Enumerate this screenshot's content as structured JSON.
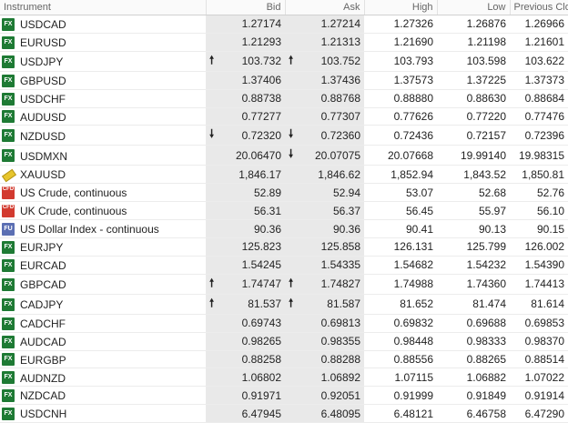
{
  "columns": {
    "instrument": "Instrument",
    "bid": "Bid",
    "ask": "Ask",
    "high": "High",
    "low": "Low",
    "prev_close": "Previous Close"
  },
  "rows": [
    {
      "type": "FX",
      "name": "USDCAD",
      "bid": "1.27174",
      "ask": "1.27214",
      "high": "1.27326",
      "low": "1.26876",
      "prev": "1.26966",
      "bid_arrow": "",
      "ask_arrow": ""
    },
    {
      "type": "FX",
      "name": "EURUSD",
      "bid": "1.21293",
      "ask": "1.21313",
      "high": "1.21690",
      "low": "1.21198",
      "prev": "1.21601",
      "bid_arrow": "",
      "ask_arrow": ""
    },
    {
      "type": "FX",
      "name": "USDJPY",
      "bid": "103.732",
      "ask": "103.752",
      "high": "103.793",
      "low": "103.598",
      "prev": "103.622",
      "bid_arrow": "🠕",
      "ask_arrow": "🠕"
    },
    {
      "type": "FX",
      "name": "GBPUSD",
      "bid": "1.37406",
      "ask": "1.37436",
      "high": "1.37573",
      "low": "1.37225",
      "prev": "1.37373",
      "bid_arrow": "",
      "ask_arrow": ""
    },
    {
      "type": "FX",
      "name": "USDCHF",
      "bid": "0.88738",
      "ask": "0.88768",
      "high": "0.88880",
      "low": "0.88630",
      "prev": "0.88684",
      "bid_arrow": "",
      "ask_arrow": ""
    },
    {
      "type": "FX",
      "name": "AUDUSD",
      "bid": "0.77277",
      "ask": "0.77307",
      "high": "0.77626",
      "low": "0.77220",
      "prev": "0.77476",
      "bid_arrow": "",
      "ask_arrow": ""
    },
    {
      "type": "FX",
      "name": "NZDUSD",
      "bid": "0.72320",
      "ask": "0.72360",
      "high": "0.72436",
      "low": "0.72157",
      "prev": "0.72396",
      "bid_arrow": "🠗",
      "ask_arrow": "🠗"
    },
    {
      "type": "FX",
      "name": "USDMXN",
      "bid": "20.06470",
      "ask": "20.07075",
      "high": "20.07668",
      "low": "19.99140",
      "prev": "19.98315",
      "bid_arrow": "",
      "ask_arrow": "🠗"
    },
    {
      "type": "GOLD",
      "name": "XAUUSD",
      "bid": "1,846.17",
      "ask": "1,846.62",
      "high": "1,852.94",
      "low": "1,843.52",
      "prev": "1,850.81",
      "bid_arrow": "",
      "ask_arrow": ""
    },
    {
      "type": "CFD",
      "name": "US Crude, continuous",
      "bid": "52.89",
      "ask": "52.94",
      "high": "53.07",
      "low": "52.68",
      "prev": "52.76",
      "bid_arrow": "",
      "ask_arrow": ""
    },
    {
      "type": "CFD",
      "name": "UK Crude, continuous",
      "bid": "56.31",
      "ask": "56.37",
      "high": "56.45",
      "low": "55.97",
      "prev": "56.10",
      "bid_arrow": "",
      "ask_arrow": ""
    },
    {
      "type": "FU",
      "name": "US Dollar Index - continuous",
      "bid": "90.36",
      "ask": "90.36",
      "high": "90.41",
      "low": "90.13",
      "prev": "90.15",
      "bid_arrow": "",
      "ask_arrow": ""
    },
    {
      "type": "FX",
      "name": "EURJPY",
      "bid": "125.823",
      "ask": "125.858",
      "high": "126.131",
      "low": "125.799",
      "prev": "126.002",
      "bid_arrow": "",
      "ask_arrow": ""
    },
    {
      "type": "FX",
      "name": "EURCAD",
      "bid": "1.54245",
      "ask": "1.54335",
      "high": "1.54682",
      "low": "1.54232",
      "prev": "1.54390",
      "bid_arrow": "",
      "ask_arrow": ""
    },
    {
      "type": "FX",
      "name": "GBPCAD",
      "bid": "1.74747",
      "ask": "1.74827",
      "high": "1.74988",
      "low": "1.74360",
      "prev": "1.74413",
      "bid_arrow": "🠕",
      "ask_arrow": "🠕"
    },
    {
      "type": "FX",
      "name": "CADJPY",
      "bid": "81.537",
      "ask": "81.587",
      "high": "81.652",
      "low": "81.474",
      "prev": "81.614",
      "bid_arrow": "🠕",
      "ask_arrow": "🠕"
    },
    {
      "type": "FX",
      "name": "CADCHF",
      "bid": "0.69743",
      "ask": "0.69813",
      "high": "0.69832",
      "low": "0.69688",
      "prev": "0.69853",
      "bid_arrow": "",
      "ask_arrow": ""
    },
    {
      "type": "FX",
      "name": "AUDCAD",
      "bid": "0.98265",
      "ask": "0.98355",
      "high": "0.98448",
      "low": "0.98333",
      "prev": "0.98370",
      "bid_arrow": "",
      "ask_arrow": ""
    },
    {
      "type": "FX",
      "name": "EURGBP",
      "bid": "0.88258",
      "ask": "0.88288",
      "high": "0.88556",
      "low": "0.88265",
      "prev": "0.88514",
      "bid_arrow": "",
      "ask_arrow": ""
    },
    {
      "type": "FX",
      "name": "AUDNZD",
      "bid": "1.06802",
      "ask": "1.06892",
      "high": "1.07115",
      "low": "1.06882",
      "prev": "1.07022",
      "bid_arrow": "",
      "ask_arrow": ""
    },
    {
      "type": "FX",
      "name": "NZDCAD",
      "bid": "0.91971",
      "ask": "0.92051",
      "high": "0.91999",
      "low": "0.91849",
      "prev": "0.91914",
      "bid_arrow": "",
      "ask_arrow": ""
    },
    {
      "type": "FX",
      "name": "USDCNH",
      "bid": "6.47945",
      "ask": "6.48095",
      "high": "6.48121",
      "low": "6.46758",
      "prev": "6.47290",
      "bid_arrow": "",
      "ask_arrow": ""
    }
  ],
  "badges": {
    "FX": {
      "text": "FX",
      "color": "#1e7a34",
      "icon": "fx-badge-icon"
    },
    "CFD": {
      "text": "CFD",
      "color": "#d23a2f",
      "icon": "cfd-badge-icon"
    },
    "FU": {
      "text": "FU",
      "color": "#5b6fb3",
      "icon": "futures-badge-icon"
    },
    "GOLD": {
      "text": "",
      "color": "#e7c52c",
      "icon": "gold-bar-icon"
    }
  }
}
